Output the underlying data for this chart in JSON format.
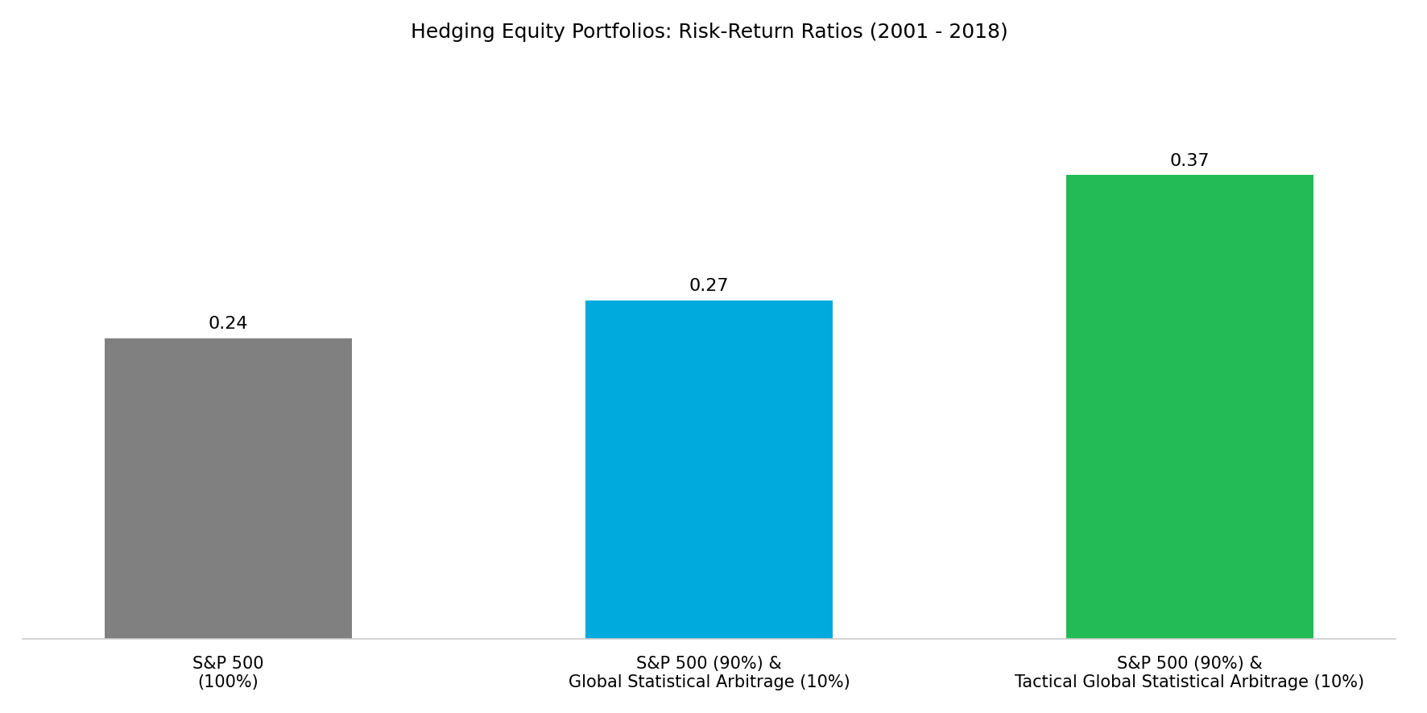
{
  "title": "Hedging Equity Portfolios: Risk-Return Ratios (2001 - 2018)",
  "categories": [
    "S&P 500\n(100%)",
    "S&P 500 (90%) &\nGlobal Statistical Arbitrage (10%)",
    "S&P 500 (90%) &\nTactical Global Statistical Arbitrage (10%)"
  ],
  "values": [
    0.24,
    0.27,
    0.37
  ],
  "bar_colors": [
    "#808080",
    "#00AADD",
    "#22BB55"
  ],
  "value_labels": [
    "0.24",
    "0.27",
    "0.37"
  ],
  "ylim": [
    0,
    0.46
  ],
  "title_fontsize": 18,
  "label_fontsize": 15,
  "value_fontsize": 16,
  "background_color": "#ffffff",
  "bar_width": 0.18,
  "x_positions": [
    0.15,
    0.5,
    0.85
  ]
}
